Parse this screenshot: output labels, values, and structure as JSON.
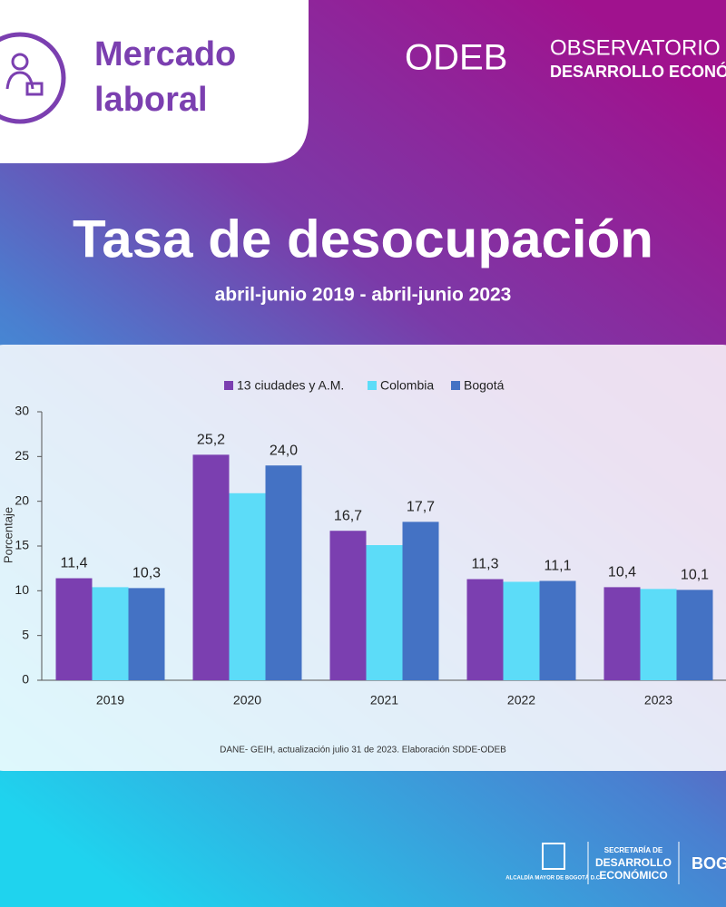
{
  "header": {
    "section": "Mercado laboral",
    "brand": "ODEB",
    "brand_line1": "OBSERVATORIO",
    "brand_line2": "DESARROLLO ECONÓMICO"
  },
  "chart_data": {
    "type": "bar",
    "title": "Tasa de desocupación",
    "subtitle": "abril-junio 2019 - abril-junio 2023",
    "y_label": "Porcentaje",
    "categories": [
      "2019",
      "2020",
      "2021",
      "2022",
      "2023"
    ],
    "series": [
      {
        "name": "13 ciudades y A.M.",
        "color": "#7b3fb0",
        "values": [
          11.4,
          25.2,
          16.7,
          11.3,
          10.4
        ],
        "value_labels": [
          "11,4",
          "25,2",
          "16,7",
          "11,3",
          "10,4"
        ]
      },
      {
        "name": "Colombia",
        "color": "#5cdcf8",
        "values": [
          10.4,
          20.9,
          15.1,
          11.0,
          10.2
        ]
      },
      {
        "name": "Bogotá",
        "color": "#4472c4",
        "values": [
          10.3,
          24.0,
          17.7,
          11.1,
          10.1
        ],
        "value_labels": [
          "10,3",
          "24,0",
          "17,7",
          "11,1",
          "10,1"
        ]
      }
    ],
    "ylim": [
      0,
      30
    ],
    "yticks": [
      0,
      5,
      10,
      15,
      20,
      25,
      30
    ],
    "grid": false,
    "source": "DANE- GEIH, actualización julio 31 de 2023. Elaboración SDDE-ODEB"
  },
  "footer": {
    "alcaldia": "ALCALDÍA MAYOR DE BOGOTÁ D.C.",
    "secretaria_1": "SECRETARÍA DE",
    "secretaria_2": "DESARROLLO",
    "secretaria_3": "ECONÓMICO",
    "city": "BOGOTÁ"
  }
}
